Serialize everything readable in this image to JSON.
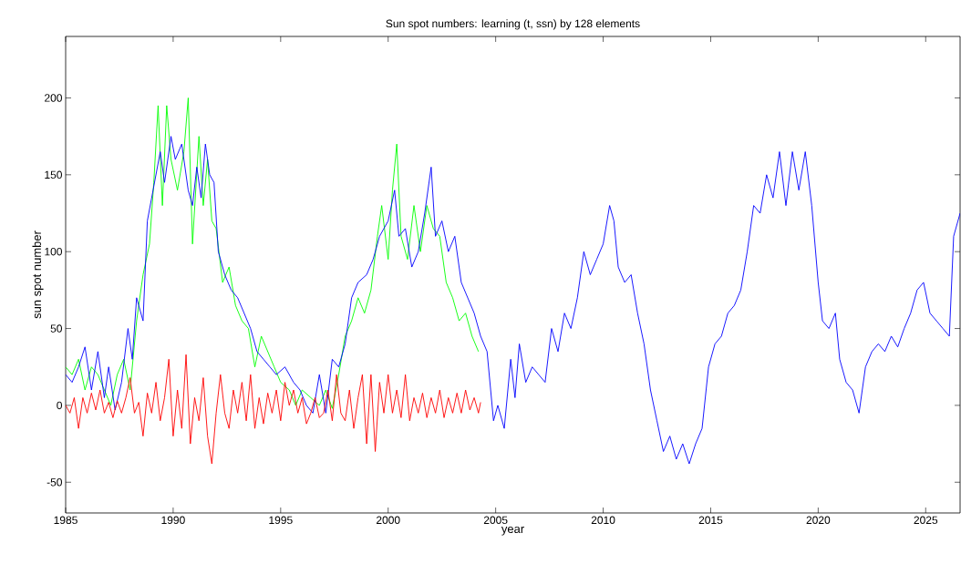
{
  "chart_data": {
    "type": "line",
    "title": "Sun spot numbers: learning (t, ssn) by 128 elements",
    "xlabel": "year",
    "ylabel": "sun spot number",
    "xlim": [
      1985,
      2026.6
    ],
    "ylim": [
      -70,
      240
    ],
    "xticks": [
      1985,
      1990,
      1995,
      2000,
      2005,
      2010,
      2015,
      2020,
      2025
    ],
    "yticks": [
      -50,
      0,
      50,
      100,
      150,
      200
    ],
    "line_style": "solid",
    "series": [
      {
        "color": "#00ff00",
        "x": [
          1985.0,
          1985.3,
          1985.6,
          1985.9,
          1986.2,
          1986.5,
          1986.8,
          1987.1,
          1987.4,
          1987.7,
          1988.0,
          1988.3,
          1988.6,
          1988.9,
          1989.1,
          1989.3,
          1989.5,
          1989.7,
          1989.9,
          1990.2,
          1990.5,
          1990.7,
          1990.9,
          1991.2,
          1991.4,
          1991.6,
          1991.8,
          1992.0,
          1992.3,
          1992.6,
          1992.9,
          1993.2,
          1993.5,
          1993.8,
          1994.1,
          1994.4,
          1994.7,
          1995.0,
          1995.4,
          1995.7,
          1996.0,
          1996.4,
          1996.8,
          1997.1,
          1997.4,
          1997.7,
          1998.0,
          1998.3,
          1998.6,
          1998.9,
          1999.2,
          1999.5,
          1999.7,
          2000.0,
          2000.2,
          2000.4,
          2000.6,
          2000.9,
          2001.2,
          2001.5,
          2001.8,
          2002.1,
          2002.4,
          2002.7,
          2003.0,
          2003.3,
          2003.6,
          2003.9,
          2004.2
        ],
        "values": [
          25,
          20,
          30,
          10,
          25,
          20,
          10,
          0,
          20,
          30,
          10,
          55,
          85,
          105,
          145,
          195,
          130,
          195,
          160,
          140,
          165,
          200,
          105,
          175,
          130,
          160,
          120,
          115,
          80,
          90,
          65,
          55,
          50,
          25,
          45,
          35,
          25,
          15,
          10,
          0,
          10,
          5,
          0,
          10,
          -2,
          20,
          45,
          55,
          70,
          60,
          75,
          110,
          130,
          95,
          140,
          170,
          110,
          95,
          130,
          100,
          130,
          115,
          110,
          80,
          70,
          55,
          60,
          45,
          35
        ]
      },
      {
        "color": "#0000ff",
        "x": [
          1985.0,
          1985.3,
          1985.6,
          1985.9,
          1986.2,
          1986.5,
          1986.8,
          1987.0,
          1987.3,
          1987.6,
          1987.9,
          1988.1,
          1988.3,
          1988.6,
          1988.8,
          1989.0,
          1989.2,
          1989.4,
          1989.6,
          1989.9,
          1990.1,
          1990.4,
          1990.7,
          1990.9,
          1991.1,
          1991.3,
          1991.5,
          1991.7,
          1991.9,
          1992.1,
          1992.4,
          1992.7,
          1993.0,
          1993.3,
          1993.6,
          1993.9,
          1994.2,
          1994.5,
          1994.8,
          1995.2,
          1995.6,
          1995.9,
          1996.2,
          1996.5,
          1996.8,
          1997.1,
          1997.4,
          1997.7,
          1998.0,
          1998.3,
          1998.6,
          1999.0,
          1999.3,
          1999.6,
          2000.0,
          2000.3,
          2000.5,
          2000.8,
          2001.1,
          2001.4,
          2001.7,
          2002.0,
          2002.2,
          2002.5,
          2002.8,
          2003.1,
          2003.4,
          2003.7,
          2004.0,
          2004.3,
          2004.6,
          2004.9,
          2005.1,
          2005.4,
          2005.7,
          2005.9,
          2006.1,
          2006.4,
          2006.7,
          2007.0,
          2007.3,
          2007.6,
          2007.9,
          2008.2,
          2008.5,
          2008.8,
          2009.1,
          2009.4,
          2009.7,
          2010.0,
          2010.3,
          2010.5,
          2010.7,
          2011.0,
          2011.3,
          2011.6,
          2011.9,
          2012.2,
          2012.5,
          2012.8,
          2013.1,
          2013.4,
          2013.7,
          2014.0,
          2014.3,
          2014.6,
          2014.9,
          2015.2,
          2015.5,
          2015.8,
          2016.1,
          2016.4,
          2016.7,
          2017.0,
          2017.3,
          2017.6,
          2017.9,
          2018.2,
          2018.5,
          2018.8,
          2019.1,
          2019.4,
          2019.7,
          2020.0,
          2020.2,
          2020.5,
          2020.8,
          2021.0,
          2021.3,
          2021.6,
          2021.9,
          2022.2,
          2022.5,
          2022.8,
          2023.1,
          2023.4,
          2023.7,
          2024.0,
          2024.3,
          2024.6,
          2024.9,
          2025.2,
          2025.5,
          2025.8,
          2026.1,
          2026.3,
          2026.6
        ],
        "values": [
          20,
          15,
          25,
          38,
          10,
          35,
          5,
          25,
          -3,
          15,
          50,
          30,
          70,
          55,
          120,
          135,
          150,
          165,
          145,
          175,
          160,
          170,
          140,
          130,
          155,
          135,
          170,
          150,
          145,
          100,
          85,
          75,
          70,
          60,
          50,
          35,
          30,
          25,
          20,
          25,
          15,
          10,
          0,
          -5,
          20,
          -5,
          30,
          25,
          40,
          70,
          80,
          85,
          95,
          110,
          120,
          140,
          110,
          115,
          90,
          100,
          125,
          155,
          110,
          120,
          100,
          110,
          80,
          70,
          60,
          45,
          35,
          -10,
          0,
          -15,
          30,
          5,
          40,
          15,
          25,
          20,
          15,
          50,
          35,
          60,
          50,
          70,
          100,
          85,
          95,
          105,
          130,
          120,
          90,
          80,
          85,
          60,
          40,
          10,
          -10,
          -30,
          -20,
          -35,
          -25,
          -38,
          -25,
          -15,
          25,
          40,
          45,
          60,
          65,
          75,
          100,
          130,
          125,
          150,
          135,
          165,
          130,
          165,
          140,
          165,
          130,
          80,
          55,
          50,
          60,
          30,
          15,
          10,
          -5,
          25,
          35,
          40,
          35,
          45,
          38,
          50,
          60,
          75,
          80,
          60,
          55,
          50,
          45,
          110,
          125
        ]
      },
      {
        "color": "#ff0000",
        "x": [
          1985.0,
          1985.2,
          1985.4,
          1985.6,
          1985.8,
          1986.0,
          1986.2,
          1986.4,
          1986.6,
          1986.8,
          1987.0,
          1987.2,
          1987.4,
          1987.6,
          1987.8,
          1988.0,
          1988.2,
          1988.4,
          1988.6,
          1988.8,
          1989.0,
          1989.2,
          1989.4,
          1989.6,
          1989.8,
          1990.0,
          1990.2,
          1990.4,
          1990.6,
          1990.8,
          1991.0,
          1991.2,
          1991.4,
          1991.6,
          1991.8,
          1992.0,
          1992.2,
          1992.4,
          1992.6,
          1992.8,
          1993.0,
          1993.2,
          1993.4,
          1993.6,
          1993.8,
          1994.0,
          1994.2,
          1994.4,
          1994.6,
          1994.8,
          1995.0,
          1995.2,
          1995.4,
          1995.6,
          1995.8,
          1996.0,
          1996.2,
          1996.4,
          1996.6,
          1996.8,
          1997.0,
          1997.2,
          1997.4,
          1997.6,
          1997.8,
          1998.0,
          1998.2,
          1998.4,
          1998.6,
          1998.8,
          1999.0,
          1999.2,
          1999.4,
          1999.6,
          1999.8,
          2000.0,
          2000.2,
          2000.4,
          2000.6,
          2000.8,
          2001.0,
          2001.2,
          2001.4,
          2001.6,
          2001.8,
          2002.0,
          2002.2,
          2002.4,
          2002.6,
          2002.8,
          2003.0,
          2003.2,
          2003.4,
          2003.6,
          2003.8,
          2004.0,
          2004.2,
          2004.3
        ],
        "values": [
          0,
          -5,
          5,
          -15,
          5,
          -5,
          8,
          -3,
          10,
          -5,
          2,
          -8,
          3,
          -5,
          5,
          18,
          -5,
          2,
          -20,
          8,
          -5,
          15,
          -10,
          5,
          30,
          -20,
          10,
          -15,
          33,
          -25,
          5,
          -10,
          18,
          -20,
          -38,
          -5,
          20,
          -5,
          -15,
          10,
          -5,
          15,
          -10,
          20,
          -15,
          5,
          -12,
          8,
          -5,
          10,
          -10,
          15,
          0,
          10,
          -5,
          5,
          -12,
          -5,
          5,
          -8,
          -5,
          10,
          -10,
          20,
          -5,
          -10,
          10,
          -15,
          5,
          20,
          -25,
          20,
          -30,
          15,
          -5,
          20,
          -5,
          10,
          -8,
          20,
          -10,
          5,
          -5,
          8,
          -8,
          5,
          -5,
          10,
          -8,
          5,
          -5,
          8,
          -5,
          10,
          -3,
          5,
          -5,
          2
        ]
      }
    ]
  }
}
